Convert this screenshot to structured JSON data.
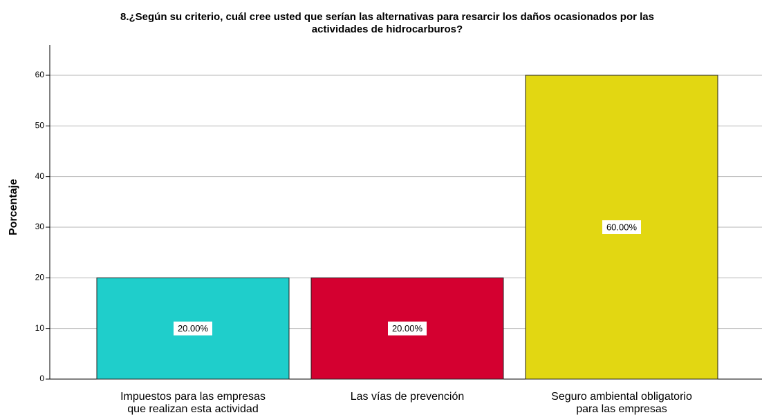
{
  "chart_data": {
    "type": "bar",
    "title": [
      "8.¿Según su criterio, cuál cree usted que serían las alternativas para resarcir los daños ocasionados por las",
      "actividades de hidrocarburos?"
    ],
    "y_label": "Porcentaje",
    "categories": [
      [
        "Impuestos para las empresas",
        "que realizan esta actividad"
      ],
      [
        "Las vías de prevención"
      ],
      [
        "Seguro ambiental obligatorio",
        "para las empresas"
      ]
    ],
    "values": [
      20,
      20,
      60
    ],
    "value_labels": [
      "20.00%",
      "20.00%",
      "60.00%"
    ],
    "colors": [
      "#1fcecb",
      "#d40030",
      "#e2d712"
    ],
    "ylim": [
      0,
      66
    ],
    "yticks": [
      0,
      10,
      20,
      30,
      40,
      50,
      60
    ],
    "grid": true
  }
}
